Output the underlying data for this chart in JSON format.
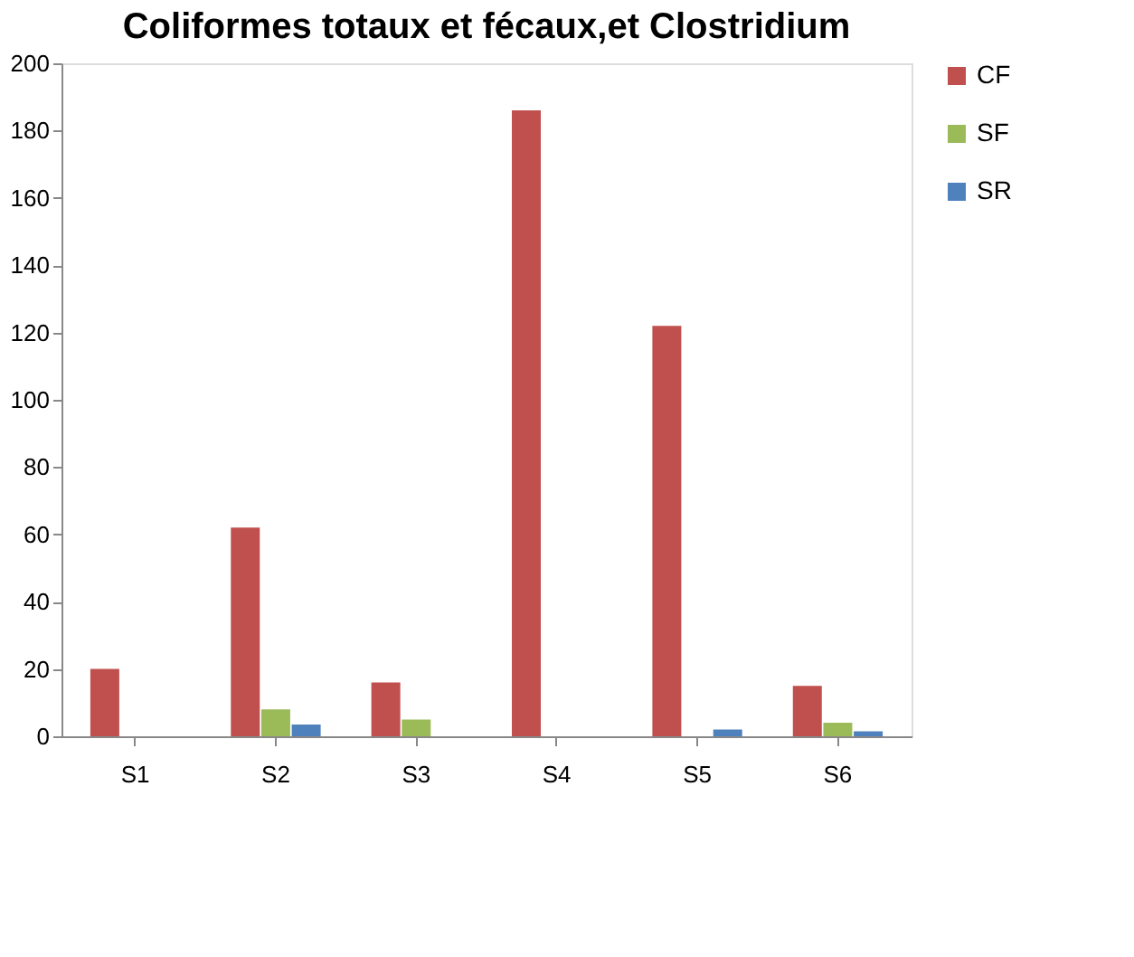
{
  "chart_data": {
    "type": "bar",
    "title": "Coliformes totaux et fécaux,et Clostridium",
    "categories": [
      "S1",
      "S2",
      "S3",
      "S4",
      "S5",
      "S6"
    ],
    "series": [
      {
        "name": "CF",
        "color": "#c0504d",
        "values": [
          20,
          62,
          16,
          186,
          122,
          15
        ]
      },
      {
        "name": "SF",
        "color": "#9bbb59",
        "values": [
          0,
          8,
          5,
          0,
          0,
          4
        ]
      },
      {
        "name": "SR",
        "color": "#4f81bd",
        "values": [
          0,
          3.5,
          0,
          0,
          2,
          1.5
        ]
      }
    ],
    "ylim": [
      0,
      200
    ],
    "yticks": [
      0,
      20,
      40,
      60,
      80,
      100,
      120,
      140,
      160,
      180,
      200
    ],
    "grid": false,
    "legend": "right"
  }
}
